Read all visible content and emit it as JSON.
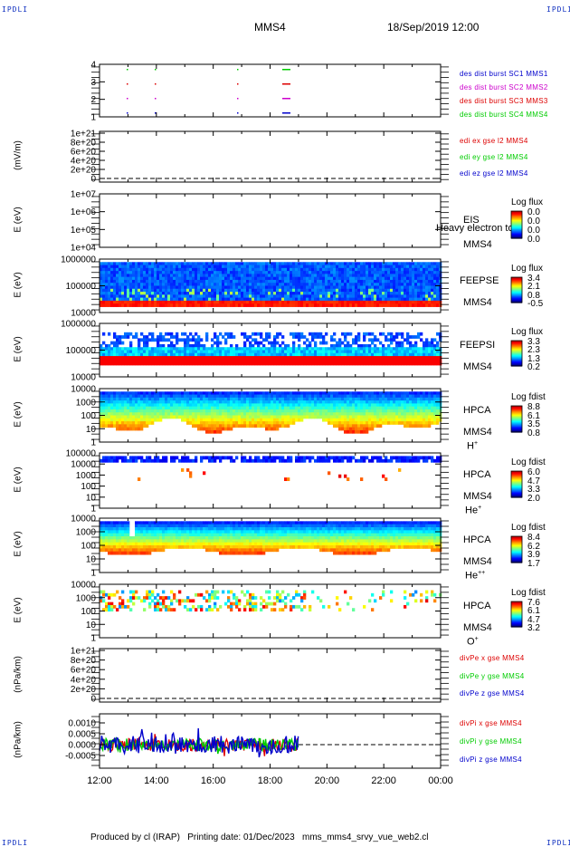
{
  "corners": {
    "tl": "IPDLI",
    "tr": "IPDLI",
    "bl": "IPDLI",
    "br": "IPDLI"
  },
  "header": {
    "title": "MMS4",
    "date": "18/Sep/2019 12:00"
  },
  "footer": "Produced by cl (IRAP)   Printing date: 01/Dec/2023   mms_mms4_srvy_vue_web2.cl",
  "chart_data": {
    "type": "heatmap",
    "x_axis": {
      "ticks": [
        "12:00",
        "14:00",
        "16:00",
        "18:00",
        "20:00",
        "22:00",
        "00:00"
      ]
    },
    "panels": [
      {
        "id": "dist-burst",
        "type": "scatter",
        "ylabel": "",
        "yticks": [
          "4",
          "3",
          "2",
          "1"
        ],
        "legend": [
          {
            "text": "des dist burst SC1 MMS1",
            "color": "#0000cc"
          },
          {
            "text": "des dist burst SC2 MMS2",
            "color": "#cc00cc"
          },
          {
            "text": "des dist burst SC3 MMS3",
            "color": "#dd0000"
          },
          {
            "text": "des dist burst SC4 MMS4",
            "color": "#00cc00"
          }
        ]
      },
      {
        "id": "edi-e",
        "type": "line",
        "ylabel": "(mV/m)",
        "yticks": [
          "1e+21",
          "8e+20",
          "6e+20",
          "4e+20",
          "2e+20",
          "0"
        ],
        "legend": [
          {
            "text": "edi ex gse l2 MMS4",
            "color": "#dd0000"
          },
          {
            "text": "edi ey gse l2 MMS4",
            "color": "#00cc00"
          },
          {
            "text": "edi ez gse l2 MMS4",
            "color": "#0000cc"
          }
        ]
      },
      {
        "id": "eis",
        "type": "heatmap",
        "ylabel": "E (eV)",
        "yticks": [
          "1e+07",
          "1e+06",
          "1e+05",
          "1e+04"
        ],
        "side": [
          "EIS",
          "MMS4"
        ],
        "overlay": "Heavy electron to",
        "cb": {
          "title": "Log flux",
          "ticks": [
            "0.0",
            "0.0",
            "0.0",
            "0.0"
          ]
        }
      },
      {
        "id": "feepse",
        "type": "heatmap",
        "ylabel": "E (eV)",
        "yticks": [
          "1000000",
          "100000",
          "10000"
        ],
        "side": [
          "FEEPSE",
          "MMS4"
        ],
        "cb": {
          "title": "Log flux",
          "ticks": [
            "3.4",
            "2.1",
            "0.8",
            "-0.5"
          ]
        }
      },
      {
        "id": "feepsi",
        "type": "heatmap",
        "ylabel": "E (eV)",
        "yticks": [
          "1000000",
          "100000",
          "10000"
        ],
        "side": [
          "FEEPSI",
          "MMS4"
        ],
        "cb": {
          "title": "Log flux",
          "ticks": [
            "3.3",
            "2.3",
            "1.3",
            "0.2"
          ]
        }
      },
      {
        "id": "hpca-h",
        "type": "heatmap",
        "ylabel": "E (eV)",
        "yticks": [
          "10000",
          "1000",
          "100",
          "10",
          "1"
        ],
        "side": [
          "HPCA",
          "MMS4",
          "H"
        ],
        "sup": "+",
        "cb": {
          "title": "Log fdist",
          "ticks": [
            "8.8",
            "6.1",
            "3.5",
            "0.8"
          ]
        }
      },
      {
        "id": "hpca-he",
        "type": "heatmap",
        "ylabel": "E (eV)",
        "yticks": [
          "100000",
          "10000",
          "1000",
          "100",
          "10",
          "1"
        ],
        "side": [
          "HPCA",
          "MMS4",
          "He"
        ],
        "sup": "+",
        "cb": {
          "title": "Log fdist",
          "ticks": [
            "6.0",
            "4.7",
            "3.3",
            "2.0"
          ]
        }
      },
      {
        "id": "hpca-hepp",
        "type": "heatmap",
        "ylabel": "E (eV)",
        "yticks": [
          "10000",
          "1000",
          "100",
          "10",
          "1"
        ],
        "side": [
          "HPCA",
          "MMS4",
          "He"
        ],
        "sup": "++",
        "cb": {
          "title": "Log fdist",
          "ticks": [
            "8.4",
            "6.2",
            "3.9",
            "1.7"
          ]
        }
      },
      {
        "id": "hpca-o",
        "type": "heatmap",
        "ylabel": "E (eV)",
        "yticks": [
          "10000",
          "1000",
          "100",
          "10",
          "1"
        ],
        "side": [
          "HPCA",
          "MMS4",
          "O"
        ],
        "sup": "+",
        "cb": {
          "title": "Log fdist",
          "ticks": [
            "7.6",
            "6.1",
            "4.7",
            "3.2"
          ]
        }
      },
      {
        "id": "divpe",
        "type": "line",
        "ylabel": "(nPa/km)",
        "yticks": [
          "1e+21",
          "8e+20",
          "6e+20",
          "4e+20",
          "2e+20",
          "0"
        ],
        "legend": [
          {
            "text": "divPe x gse MMS4",
            "color": "#dd0000"
          },
          {
            "text": "divPe y gse MMS4",
            "color": "#00cc00"
          },
          {
            "text": "divPe z gse MMS4",
            "color": "#0000cc"
          }
        ]
      },
      {
        "id": "divpi",
        "type": "line",
        "ylabel": "(nPa/km)",
        "yticks": [
          "0.0010",
          "0.0005",
          "0.0000",
          "-0.0005"
        ],
        "legend": [
          {
            "text": "divPi x gse MMS4",
            "color": "#dd0000"
          },
          {
            "text": "divPi y gse MMS4",
            "color": "#00cc00"
          },
          {
            "text": "divPi z gse MMS4",
            "color": "#0000cc"
          }
        ]
      }
    ]
  }
}
